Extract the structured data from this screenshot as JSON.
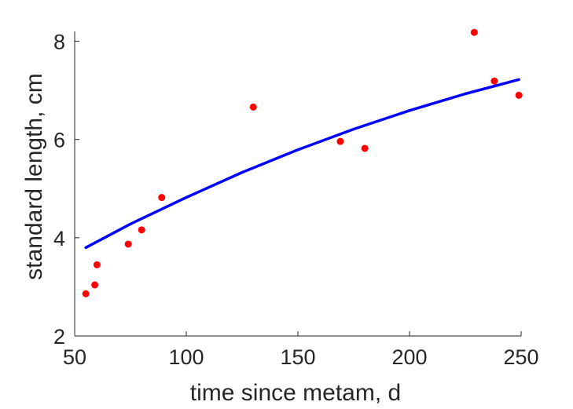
{
  "chart_data": {
    "type": "scatter",
    "title": "",
    "xlabel": "time since metam, d",
    "ylabel": "standard length, cm",
    "xlim": [
      50,
      250
    ],
    "ylim": [
      2,
      8.2
    ],
    "xticks": [
      50,
      100,
      150,
      200,
      250
    ],
    "yticks": [
      2,
      4,
      6,
      8
    ],
    "grid": false,
    "series": [
      {
        "kind": "points",
        "color": "#ff0000",
        "x": [
          55,
          59,
          60,
          74,
          80,
          89,
          130,
          169,
          180,
          229,
          238,
          249
        ],
        "y": [
          2.86,
          3.04,
          3.45,
          3.87,
          4.16,
          4.82,
          6.66,
          5.96,
          5.82,
          8.18,
          7.19,
          6.9
        ]
      },
      {
        "kind": "line",
        "color": "#0000ff",
        "x": [
          55,
          75,
          100,
          125,
          150,
          175,
          200,
          225,
          249
        ],
        "y": [
          3.8,
          4.28,
          4.82,
          5.33,
          5.79,
          6.21,
          6.59,
          6.93,
          7.22
        ]
      }
    ]
  }
}
